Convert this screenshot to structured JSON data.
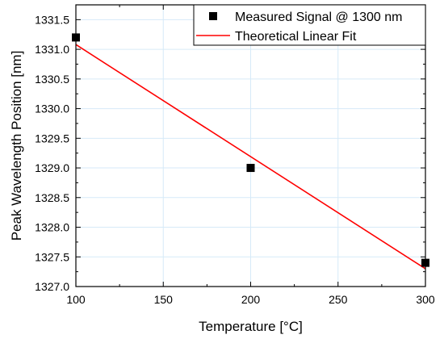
{
  "chart_data": {
    "type": "scatter",
    "xlabel": "Temperature [°C]",
    "ylabel": "Peak Wavelength Position [nm]",
    "xlim": [
      100,
      300
    ],
    "ylim": [
      1327.0,
      1331.75
    ],
    "x_ticks": [
      100,
      150,
      200,
      250,
      300
    ],
    "x_tick_labels": [
      "100",
      "150",
      "200",
      "250",
      "300"
    ],
    "y_ticks": [
      1327.0,
      1327.5,
      1328.0,
      1328.5,
      1329.0,
      1329.5,
      1330.0,
      1330.5,
      1331.0,
      1331.5
    ],
    "y_tick_labels": [
      "1327.0",
      "1327.5",
      "1328.0",
      "1328.5",
      "1329.0",
      "1329.5",
      "1330.0",
      "1330.5",
      "1331.0",
      "1331.5"
    ],
    "grid": true,
    "legend_position": "top-right",
    "series": [
      {
        "name": "Measured Signal @ 1300 nm",
        "type": "scatter",
        "marker": "square",
        "color": "#000000",
        "x": [
          100,
          200,
          300
        ],
        "y": [
          1331.2,
          1329.0,
          1327.4
        ]
      },
      {
        "name": "Theoretical Linear Fit",
        "type": "line",
        "color": "#ff0000",
        "x": [
          100,
          300
        ],
        "y": [
          1331.08,
          1327.3
        ]
      }
    ]
  }
}
